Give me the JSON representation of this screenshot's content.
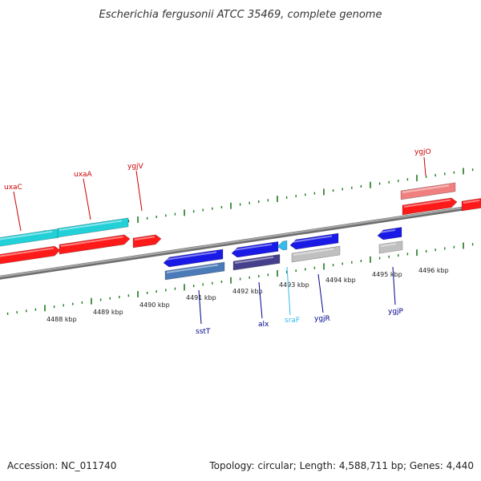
{
  "title": "Escherichia fergusonii ATCC 35469, complete genome",
  "footer": {
    "accession": "Accession: NC_011740",
    "stats": "Topology: circular; Length: 4,588,711 bp; Genes: 4,440"
  },
  "colors": {
    "backbone": "#8a8a8a",
    "tick": "#1c7a1c",
    "red": "#ff1a1a",
    "red_light": "#f08080",
    "cyan": "#22d0d8",
    "blue": "#1a1ae6",
    "steel": "#4a7ab8",
    "indigo": "#46408c",
    "gray": "#c0c0c0",
    "light_blue": "#33bbee",
    "label_red": "#cc0000",
    "label_blue": "#00008b",
    "label_cyan": "#33bbee"
  },
  "kbp_labels": [
    "4488 kbp",
    "4489 kbp",
    "4490 kbp",
    "4491 kbp",
    "4492 kbp",
    "4493 kbp",
    "4494 kbp",
    "4495 kbp",
    "4496 kbp"
  ],
  "genes": {
    "uxaC": "uxaC",
    "uxaA": "uxaA",
    "ygjV": "ygjV",
    "ygjO": "ygjO",
    "sstT": "sstT",
    "alx": "alx",
    "sraF": "sraF",
    "ygjR": "ygjR",
    "ygjP": "ygjP"
  }
}
